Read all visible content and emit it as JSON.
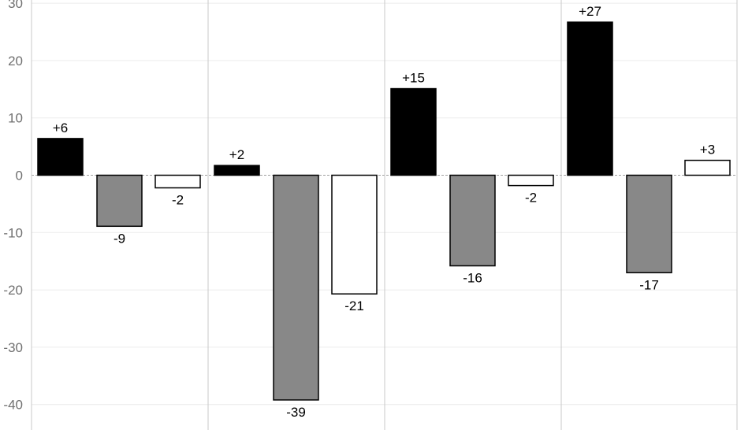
{
  "chart_data": {
    "type": "bar",
    "title": "",
    "xlabel": "",
    "ylabel": "",
    "ylim": [
      -44,
      30
    ],
    "yticks": [
      30,
      20,
      10,
      0,
      -10,
      -20,
      -30,
      -40
    ],
    "grid": true,
    "legend": "none",
    "groups": 4,
    "series": [
      {
        "color": "#000000",
        "values": [
          6.4,
          1.7,
          15.1,
          26.7
        ],
        "labels": [
          "+6",
          "+2",
          "+15",
          "+27"
        ]
      },
      {
        "color": "#888888",
        "values": [
          -8.9,
          -39.2,
          -15.8,
          -17.0
        ],
        "labels": [
          "-9",
          "-39",
          "-16",
          "-17"
        ]
      },
      {
        "color": "#ffffff",
        "values": [
          -2.2,
          -20.7,
          -1.8,
          2.6
        ],
        "labels": [
          "-2",
          "-21",
          "-2",
          "+3"
        ]
      }
    ]
  }
}
